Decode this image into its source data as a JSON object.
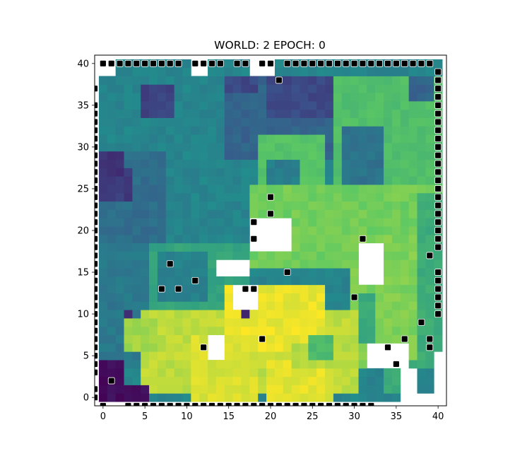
{
  "chart_data": {
    "type": "heatmap",
    "title": "WORLD: 2 EPOCH: 0",
    "xlabel": "",
    "ylabel": "",
    "xlim": [
      -1,
      41
    ],
    "ylim": [
      -1,
      41
    ],
    "x_ticks": [
      0,
      5,
      10,
      15,
      20,
      25,
      30,
      35,
      40
    ],
    "y_ticks": [
      0,
      5,
      10,
      15,
      20,
      25,
      30,
      35,
      40
    ],
    "x_tick_labels": [
      "0",
      "5",
      "10",
      "15",
      "20",
      "25",
      "30",
      "35",
      "40"
    ],
    "y_tick_labels": [
      "0",
      "5",
      "10",
      "15",
      "20",
      "25",
      "30",
      "35",
      "40"
    ],
    "colormap": "viridis",
    "grid": false,
    "marker_color": "#000000",
    "marker_edge_color": "#ffffff",
    "blank_color": "#ffffff",
    "regions": [
      {
        "x": [
          0,
          41
        ],
        "y": [
          0,
          41
        ],
        "v": 0.45
      },
      {
        "x": [
          0,
          16
        ],
        "y": [
          5,
          19
        ],
        "v": 0.4
      },
      {
        "x": [
          0,
          8
        ],
        "y": [
          19,
          30
        ],
        "v": 0.36
      },
      {
        "x": [
          0,
          4
        ],
        "y": [
          24,
          28
        ],
        "v": 0.18
      },
      {
        "x": [
          0,
          3
        ],
        "y": [
          27,
          30
        ],
        "v": 0.14
      },
      {
        "x": [
          5,
          9
        ],
        "y": [
          34,
          38
        ],
        "v": 0.2
      },
      {
        "x": [
          15,
          28
        ],
        "y": [
          29,
          39
        ],
        "v": 0.32
      },
      {
        "x": [
          15,
          19
        ],
        "y": [
          37,
          39
        ],
        "v": 0.22
      },
      {
        "x": [
          20,
          29
        ],
        "y": [
          34,
          39
        ],
        "v": 0.22
      },
      {
        "x": [
          28,
          41
        ],
        "y": [
          25,
          39
        ],
        "v": 0.7
      },
      {
        "x": [
          29,
          34
        ],
        "y": [
          26,
          33
        ],
        "v": 0.38
      },
      {
        "x": [
          37,
          40
        ],
        "y": [
          36,
          39
        ],
        "v": 0.32
      },
      {
        "x": [
          19,
          27
        ],
        "y": [
          21,
          32
        ],
        "v": 0.72
      },
      {
        "x": [
          20,
          24
        ],
        "y": [
          26,
          29
        ],
        "v": 0.42
      },
      {
        "x": [
          18,
          41
        ],
        "y": [
          16,
          26
        ],
        "v": 0.78
      },
      {
        "x": [
          30,
          41
        ],
        "y": [
          4,
          20
        ],
        "v": 0.8
      },
      {
        "x": [
          38,
          41
        ],
        "y": [
          4,
          25
        ],
        "v": 0.62
      },
      {
        "x": [
          31,
          33
        ],
        "y": [
          7,
          13
        ],
        "v": 0.6
      },
      {
        "x": [
          34,
          38
        ],
        "y": [
          1,
          5
        ],
        "v": 0.62
      },
      {
        "x": [
          6,
          18
        ],
        "y": [
          9,
          19
        ],
        "v": 0.58
      },
      {
        "x": [
          7,
          13
        ],
        "y": [
          12,
          18
        ],
        "v": 0.44
      },
      {
        "x": [
          5,
          31
        ],
        "y": [
          1,
          11
        ],
        "v": 0.9
      },
      {
        "x": [
          15,
          27
        ],
        "y": [
          6,
          14
        ],
        "v": 0.97
      },
      {
        "x": [
          11,
          19
        ],
        "y": [
          0,
          8
        ],
        "v": 0.94
      },
      {
        "x": [
          20,
          28
        ],
        "y": [
          0,
          5
        ],
        "v": 0.96
      },
      {
        "x": [
          23,
          30
        ],
        "y": [
          4,
          7
        ],
        "v": 0.88
      },
      {
        "x": [
          25,
          28
        ],
        "y": [
          5,
          8
        ],
        "v": 0.68
      },
      {
        "x": [
          3,
          7
        ],
        "y": [
          6,
          10
        ],
        "v": 0.86
      },
      {
        "x": [
          0,
          3
        ],
        "y": [
          0,
          5
        ],
        "v": 0.04
      },
      {
        "x": [
          3,
          6
        ],
        "y": [
          0,
          2
        ],
        "v": 0.04
      },
      {
        "x": [
          3,
          4
        ],
        "y": [
          10,
          11
        ],
        "v": 0.12
      },
      {
        "x": [
          17,
          18
        ],
        "y": [
          10,
          11
        ],
        "v": 0.1
      }
    ],
    "blank_regions": [
      {
        "x": [
          14,
          18
        ],
        "y": [
          15,
          17
        ]
      },
      {
        "x": [
          18,
          23
        ],
        "y": [
          18,
          22
        ]
      },
      {
        "x": [
          31,
          34
        ],
        "y": [
          14,
          19
        ]
      },
      {
        "x": [
          32,
          37
        ],
        "y": [
          4,
          7
        ]
      },
      {
        "x": [
          36,
          38
        ],
        "y": [
          0,
          4
        ]
      },
      {
        "x": [
          16,
          19
        ],
        "y": [
          11,
          14
        ]
      },
      {
        "x": [
          13,
          15
        ],
        "y": [
          5,
          8
        ]
      },
      {
        "x": [
          0,
          2
        ],
        "y": [
          39,
          41
        ]
      },
      {
        "x": [
          11,
          13
        ],
        "y": [
          39,
          41
        ]
      },
      {
        "x": [
          18,
          21
        ],
        "y": [
          39,
          41
        ]
      },
      {
        "x": [
          40,
          41
        ],
        "y": [
          0,
          6
        ]
      },
      {
        "x": [
          37,
          40
        ],
        "y": [
          0,
          1
        ]
      }
    ],
    "markers": [
      [
        0,
        40
      ],
      [
        1,
        40
      ],
      [
        2,
        40
      ],
      [
        3,
        40
      ],
      [
        4,
        40
      ],
      [
        5,
        40
      ],
      [
        6,
        40
      ],
      [
        7,
        40
      ],
      [
        8,
        40
      ],
      [
        9,
        40
      ],
      [
        11,
        40
      ],
      [
        12,
        40
      ],
      [
        13,
        40
      ],
      [
        14,
        40
      ],
      [
        16,
        40
      ],
      [
        17,
        40
      ],
      [
        19,
        40
      ],
      [
        20,
        40
      ],
      [
        22,
        40
      ],
      [
        23,
        40
      ],
      [
        24,
        40
      ],
      [
        25,
        40
      ],
      [
        26,
        40
      ],
      [
        27,
        40
      ],
      [
        28,
        40
      ],
      [
        29,
        40
      ],
      [
        30,
        40
      ],
      [
        31,
        40
      ],
      [
        32,
        40
      ],
      [
        33,
        40
      ],
      [
        34,
        40
      ],
      [
        35,
        40
      ],
      [
        36,
        40
      ],
      [
        37,
        40
      ],
      [
        38,
        40
      ],
      [
        39,
        40
      ],
      [
        40,
        39
      ],
      [
        40,
        38
      ],
      [
        40,
        37
      ],
      [
        40,
        36
      ],
      [
        40,
        35
      ],
      [
        40,
        34
      ],
      [
        40,
        33
      ],
      [
        40,
        32
      ],
      [
        40,
        31
      ],
      [
        40,
        30
      ],
      [
        40,
        29
      ],
      [
        40,
        28
      ],
      [
        40,
        27
      ],
      [
        40,
        26
      ],
      [
        40,
        25
      ],
      [
        40,
        24
      ],
      [
        40,
        23
      ],
      [
        40,
        22
      ],
      [
        40,
        21
      ],
      [
        40,
        20
      ],
      [
        40,
        19
      ],
      [
        40,
        18
      ],
      [
        40,
        15
      ],
      [
        40,
        14
      ],
      [
        40,
        13
      ],
      [
        40,
        12
      ],
      [
        40,
        11
      ],
      [
        40,
        10
      ],
      [
        -1,
        37
      ],
      [
        -1,
        35
      ],
      [
        -1,
        34
      ],
      [
        -1,
        33
      ],
      [
        -1,
        32
      ],
      [
        -1,
        31
      ],
      [
        -1,
        30
      ],
      [
        -1,
        29
      ],
      [
        -1,
        28
      ],
      [
        -1,
        27
      ],
      [
        -1,
        26
      ],
      [
        -1,
        25
      ],
      [
        -1,
        24
      ],
      [
        -1,
        23
      ],
      [
        -1,
        22
      ],
      [
        -1,
        21
      ],
      [
        -1,
        20
      ],
      [
        -1,
        19
      ],
      [
        -1,
        18
      ],
      [
        -1,
        17
      ],
      [
        -1,
        16
      ],
      [
        -1,
        15
      ],
      [
        -1,
        14
      ],
      [
        -1,
        13
      ],
      [
        -1,
        12
      ],
      [
        -1,
        11
      ],
      [
        -1,
        10
      ],
      [
        -1,
        9
      ],
      [
        -1,
        8
      ],
      [
        -1,
        7
      ],
      [
        -1,
        6
      ],
      [
        -1,
        5
      ],
      [
        -1,
        4
      ],
      [
        -1,
        3
      ],
      [
        -1,
        1
      ],
      [
        -1,
        0
      ],
      [
        0,
        -1
      ],
      [
        3,
        -1
      ],
      [
        4,
        -1
      ],
      [
        5,
        -1
      ],
      [
        6,
        -1
      ],
      [
        7,
        -1
      ],
      [
        8,
        -1
      ],
      [
        9,
        -1
      ],
      [
        10,
        -1
      ],
      [
        11,
        -1
      ],
      [
        12,
        -1
      ],
      [
        13,
        -1
      ],
      [
        14,
        -1
      ],
      [
        15,
        -1
      ],
      [
        16,
        -1
      ],
      [
        17,
        -1
      ],
      [
        18,
        -1
      ],
      [
        19,
        -1
      ],
      [
        20,
        -1
      ],
      [
        21,
        -1
      ],
      [
        22,
        -1
      ],
      [
        23,
        -1
      ],
      [
        24,
        -1
      ],
      [
        25,
        -1
      ],
      [
        26,
        -1
      ],
      [
        27,
        -1
      ],
      [
        28,
        -1
      ],
      [
        29,
        -1
      ],
      [
        30,
        -1
      ],
      [
        31,
        -1
      ],
      [
        32,
        -1
      ],
      [
        21,
        38
      ],
      [
        20,
        24
      ],
      [
        20,
        22
      ],
      [
        18,
        21
      ],
      [
        18,
        19
      ],
      [
        31,
        19
      ],
      [
        39,
        17
      ],
      [
        8,
        16
      ],
      [
        22,
        15
      ],
      [
        11,
        14
      ],
      [
        7,
        13
      ],
      [
        9,
        13
      ],
      [
        17,
        13
      ],
      [
        18,
        13
      ],
      [
        30,
        12
      ],
      [
        38,
        9
      ],
      [
        19,
        7
      ],
      [
        36,
        7
      ],
      [
        39,
        7
      ],
      [
        12,
        6
      ],
      [
        34,
        6
      ],
      [
        39,
        6
      ],
      [
        35,
        4
      ],
      [
        1,
        2
      ]
    ]
  }
}
